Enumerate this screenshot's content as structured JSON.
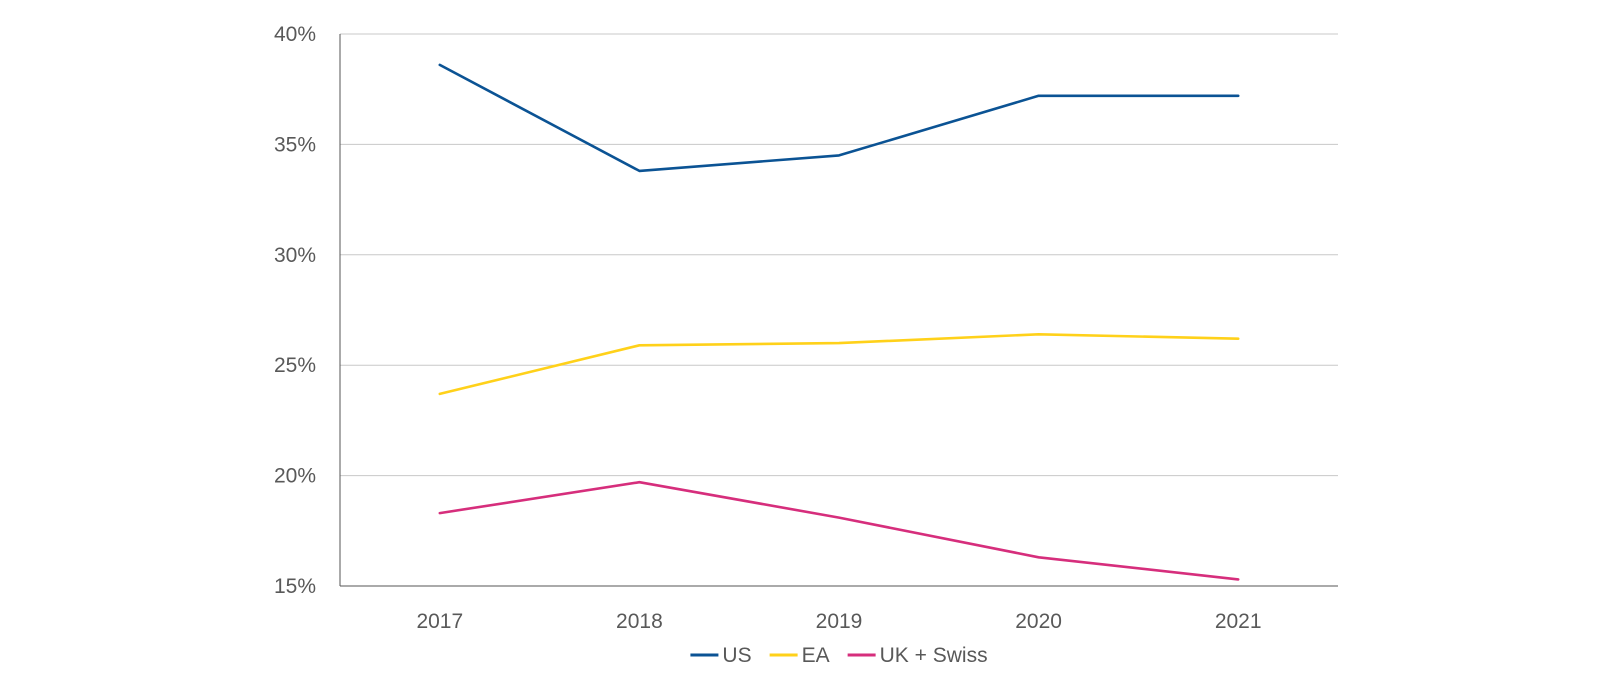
{
  "chart_data": {
    "type": "line",
    "title": "",
    "xlabel": "",
    "ylabel": "",
    "categories": [
      "2017",
      "2018",
      "2019",
      "2020",
      "2021"
    ],
    "ylim": [
      15,
      40
    ],
    "yticks": [
      15,
      20,
      25,
      30,
      35,
      40
    ],
    "ytick_labels": [
      "15%",
      "20%",
      "25%",
      "30%",
      "35%",
      "40%"
    ],
    "grid": true,
    "legend_position": "bottom",
    "series": [
      {
        "name": "US",
        "color": "#0b5394",
        "values": [
          38.6,
          33.8,
          34.5,
          37.2,
          37.2
        ]
      },
      {
        "name": "EA",
        "color": "#ffd11a",
        "values": [
          23.7,
          25.9,
          26.0,
          26.4,
          26.2
        ]
      },
      {
        "name": "UK + Swiss",
        "color": "#d62e7c",
        "values": [
          18.3,
          19.7,
          18.1,
          16.3,
          15.3
        ]
      }
    ]
  }
}
